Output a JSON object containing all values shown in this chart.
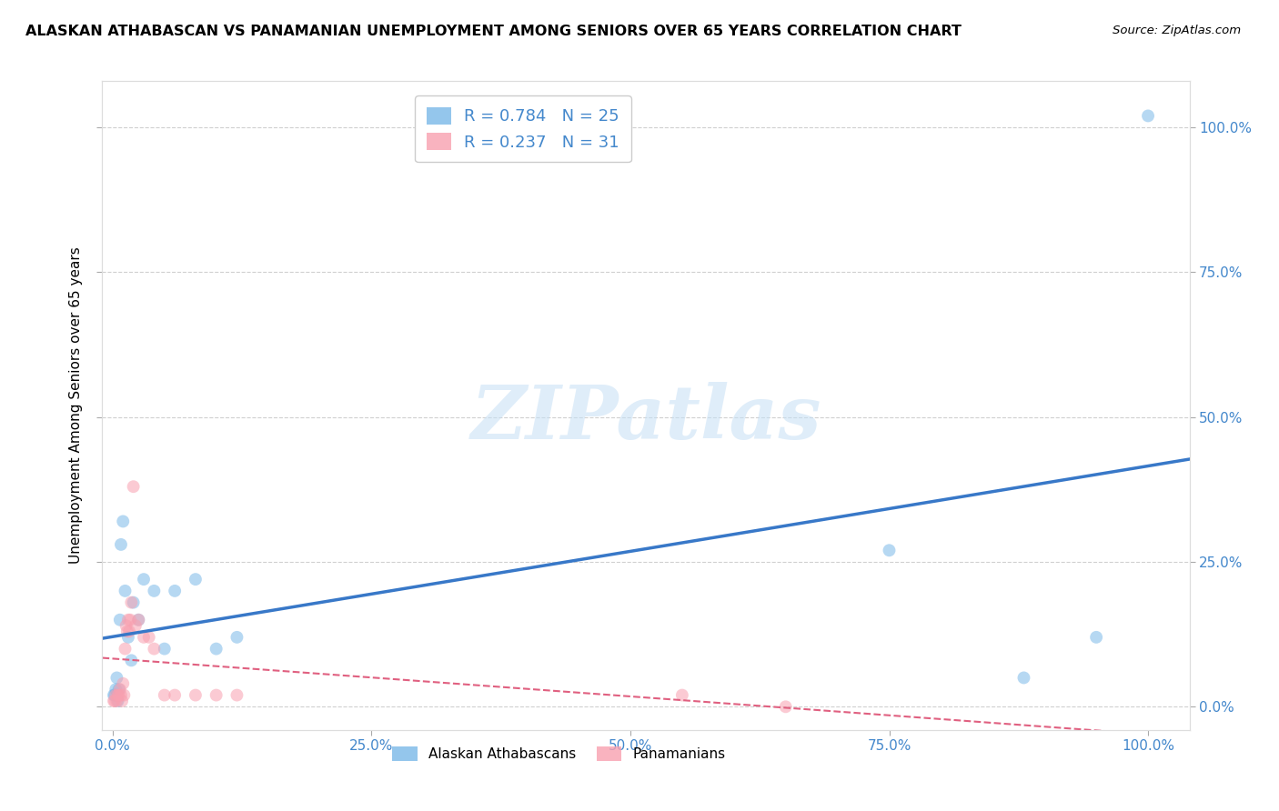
{
  "title": "ALASKAN ATHABASCAN VS PANAMANIAN UNEMPLOYMENT AMONG SENIORS OVER 65 YEARS CORRELATION CHART",
  "source": "Source: ZipAtlas.com",
  "ylabel": "Unemployment Among Seniors over 65 years",
  "blue_R": 0.784,
  "blue_N": 25,
  "pink_R": 0.237,
  "pink_N": 31,
  "blue_color": "#7ab8e8",
  "pink_color": "#f8a0b0",
  "blue_line_color": "#3878c8",
  "pink_line_color": "#e06080",
  "watermark_text": "ZIPatlas",
  "blue_scatter_x": [
    0.001,
    0.002,
    0.003,
    0.004,
    0.005,
    0.006,
    0.007,
    0.008,
    0.01,
    0.012,
    0.015,
    0.018,
    0.02,
    0.025,
    0.03,
    0.04,
    0.05,
    0.06,
    0.08,
    0.1,
    0.12,
    0.75,
    0.88,
    0.95,
    1.0
  ],
  "blue_scatter_y": [
    0.02,
    0.02,
    0.03,
    0.05,
    0.01,
    0.03,
    0.15,
    0.28,
    0.32,
    0.2,
    0.12,
    0.08,
    0.18,
    0.15,
    0.22,
    0.2,
    0.1,
    0.2,
    0.22,
    0.1,
    0.12,
    0.27,
    0.05,
    0.12,
    1.02
  ],
  "pink_scatter_x": [
    0.001,
    0.002,
    0.003,
    0.004,
    0.005,
    0.006,
    0.007,
    0.008,
    0.009,
    0.01,
    0.011,
    0.012,
    0.013,
    0.014,
    0.015,
    0.016,
    0.017,
    0.018,
    0.02,
    0.022,
    0.025,
    0.03,
    0.035,
    0.04,
    0.05,
    0.06,
    0.08,
    0.1,
    0.12,
    0.55,
    0.65
  ],
  "pink_scatter_y": [
    0.01,
    0.01,
    0.02,
    0.01,
    0.02,
    0.02,
    0.03,
    0.02,
    0.01,
    0.04,
    0.02,
    0.1,
    0.14,
    0.13,
    0.15,
    0.13,
    0.15,
    0.18,
    0.38,
    0.14,
    0.15,
    0.12,
    0.12,
    0.1,
    0.02,
    0.02,
    0.02,
    0.02,
    0.02,
    0.02,
    0.0
  ],
  "xlim": [
    -0.01,
    1.04
  ],
  "ylim": [
    -0.04,
    1.08
  ],
  "xticks": [
    0.0,
    0.25,
    0.5,
    0.75,
    1.0
  ],
  "xtick_labels": [
    "0.0%",
    "25.0%",
    "50.0%",
    "75.0%",
    "100.0%"
  ],
  "ytick_vals": [
    0.0,
    0.25,
    0.5,
    0.75,
    1.0
  ],
  "ytick_labels_right": [
    "0.0%",
    "25.0%",
    "50.0%",
    "75.0%",
    "100.0%"
  ],
  "grid_color": "#d0d0d0",
  "bg_color": "#ffffff",
  "legend_labels": [
    "Alaskan Athabascans",
    "Panamanians"
  ],
  "marker_size": 100,
  "marker_alpha": 0.55,
  "tick_color": "#4488cc"
}
